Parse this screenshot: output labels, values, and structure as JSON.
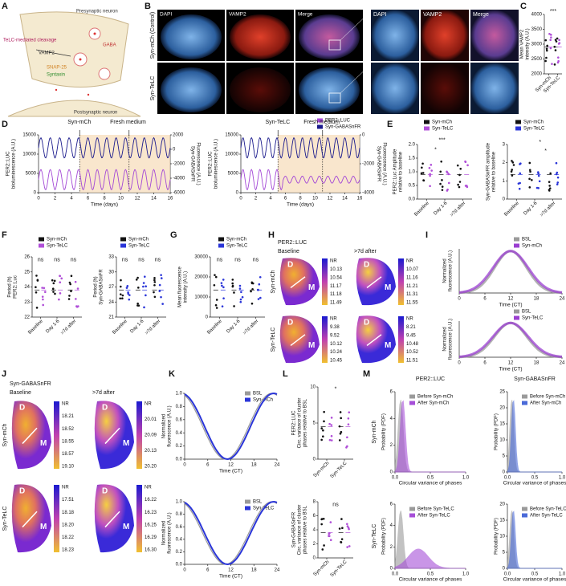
{
  "panels": {
    "A": {
      "label": "A",
      "texts": [
        "Presynaptic neuron",
        "TeLC-mediated cleavage",
        "VAMP2",
        "SNAP-25",
        "Syntaxin",
        "GABA",
        "Postsynaptic neuron"
      ]
    },
    "B": {
      "label": "B",
      "columns": [
        "DAPI",
        "VAMP2",
        "Merge"
      ],
      "zoom_columns": [
        "DAPI",
        "VAMP2",
        "Merge"
      ],
      "rows": [
        "Syn-mCh (Control)",
        "Syn-TeLC"
      ]
    },
    "C": {
      "label": "C",
      "plot": {
        "ylabel": [
          "Mean VAMP2",
          "intensity (A.U.)"
        ],
        "yticks": [
          "2000",
          "2500",
          "3000",
          "3500",
          "4000"
        ],
        "xticks": [
          "Syn-mCh",
          "Syn-TeLC"
        ],
        "notes": [
          "***"
        ]
      }
    },
    "D": {
      "label": "D",
      "plots": [
        {
          "ylabel": [
            "PER2::LUC",
            "bioluminescence (A.U.)"
          ],
          "yticks": [
            "0",
            "5000",
            "10000",
            "15000"
          ],
          "y2label": [
            "Syn-GABASnFR",
            "Fluorescence (A.U.)"
          ],
          "y2ticks": [
            "-6000",
            "-4000",
            "-2000",
            "0",
            "2000"
          ],
          "xticks": [
            "0",
            "2",
            "4",
            "6",
            "8",
            "10",
            "12",
            "14",
            "16"
          ],
          "xlabel": "Time (days)",
          "notes": [
            "Syn-mCh",
            "Fresh medium"
          ]
        },
        {
          "ylabel": [
            "PER2::LUC",
            "bioluminescence (A.U.)"
          ],
          "yticks": [
            "0",
            "5000",
            "10000",
            "15000"
          ],
          "y2label": [
            "Syn-GABASnFR",
            "Fluorescence (A.U.)"
          ],
          "y2ticks": [
            "-4000",
            "-2000",
            "0"
          ],
          "xticks": [
            "0",
            "2",
            "4",
            "6",
            "8",
            "10",
            "12",
            "14",
            "16"
          ],
          "xlabel": "Time (days)",
          "notes": [
            "Syn-TeLC",
            "Fresh medium"
          ],
          "legend": [
            {
              "name": "PER2::LUC",
              "color": "#a347d6"
            },
            {
              "name": "Syn-GABASnFR",
              "color": "#1a1a8c"
            }
          ]
        }
      ]
    },
    "E": {
      "label": "E",
      "plots": [
        {
          "ylabel": [
            "PER2::Luc Amplitude",
            "relative to baseline"
          ],
          "yticks": [
            "0.0",
            "0.5",
            "1.0",
            "1.5",
            "2.0"
          ],
          "xticks": [
            "Baseline",
            "Day 1-6",
            ">7d after"
          ],
          "notes": [
            "*",
            "***"
          ],
          "legend": [
            {
              "name": "Syn-mCh",
              "color": "#111111"
            },
            {
              "name": "Syn-TeLC",
              "color": "#b04fd8"
            }
          ]
        },
        {
          "ylabel": [
            "Syn-GABASnFR amplitude",
            "relative to baseline"
          ],
          "yticks": [
            "0",
            "1",
            "2",
            "3"
          ],
          "xticks": [
            "Baseline",
            "Day 1-6",
            ">7d after"
          ],
          "notes": [
            "*",
            "*"
          ],
          "legend": [
            {
              "name": "Syn-mCh",
              "color": "#111111"
            },
            {
              "name": "Syn-TeLC",
              "color": "#2a35d8"
            }
          ]
        }
      ]
    },
    "F": {
      "label": "F",
      "plots": [
        {
          "ylabel": [
            "Period (h)",
            "PER2::Luc"
          ],
          "yticks": [
            "22",
            "23",
            "24",
            "25",
            "26"
          ],
          "xticks": [
            "Baseline",
            "Day 1-6",
            ">7d after"
          ],
          "notes": [
            "ns",
            "ns",
            "ns"
          ],
          "legend": [
            {
              "name": "Syn-mCh",
              "color": "#111111"
            },
            {
              "name": "Syn-TeLC",
              "color": "#b04fd8"
            }
          ]
        },
        {
          "ylabel": [
            "Period (h)",
            "Syn-GABASnFR"
          ],
          "yticks": [
            "21",
            "24",
            "27",
            "30",
            "33"
          ],
          "xticks": [
            "Baseline",
            "Day 1-6",
            ">7d after"
          ],
          "notes": [
            "ns",
            "ns",
            "ns"
          ],
          "legend": [
            {
              "name": "Syn-mCh",
              "color": "#111111"
            },
            {
              "name": "Syn-TeLC",
              "color": "#2a35d8"
            }
          ]
        }
      ]
    },
    "G": {
      "label": "G",
      "plot": {
        "ylabel": [
          "Mean fluorescence",
          "intensity (A.U.)"
        ],
        "yticks": [
          "0",
          "10000",
          "20000",
          "30000"
        ],
        "xticks": [
          "Baseline",
          "Day 1-6",
          ">7d after"
        ],
        "notes": [
          "ns",
          "ns",
          "ns"
        ],
        "legend": [
          {
            "name": "Syn-mCh",
            "color": "#111111"
          },
          {
            "name": "Syn-TeLC",
            "color": "#2a35d8"
          }
        ]
      }
    },
    "H": {
      "label": "H",
      "title": "PER2::LUC",
      "columns": [
        "Baseline",
        ">7d after"
      ],
      "rows": [
        "Syn-mCh",
        "Syn-TeLC"
      ],
      "regions": [
        "D",
        "M"
      ],
      "maps": [
        {
          "labels": [
            "NR",
            "10.13",
            "10.54",
            "11.17",
            "11.18",
            "11.49"
          ]
        },
        {
          "labels": [
            "NR",
            "10.07",
            "11.16",
            "11.21",
            "11.31",
            "11.55"
          ]
        },
        {
          "labels": [
            "NR",
            "9.38",
            "9.52",
            "10.12",
            "10.24",
            "10.45"
          ]
        },
        {
          "labels": [
            "NR",
            "8.21",
            "9.45",
            "10.48",
            "10.52",
            "11.51"
          ]
        }
      ]
    },
    "I": {
      "label": "I",
      "plots": [
        {
          "ylabel": [
            "Normalized",
            "fluorescence (A.U.)"
          ],
          "xticks": [
            "0",
            "6",
            "12",
            "18",
            "24"
          ],
          "xlabel": "Time (CT)",
          "legend": [
            {
              "name": "BSL",
              "color": "#9a9a9a"
            },
            {
              "name": "Syn-mCh",
              "color": "#9b3fd1"
            }
          ]
        },
        {
          "ylabel": [
            "Normalized",
            "fluorescence (A.U.)"
          ],
          "xticks": [
            "0",
            "6",
            "12",
            "18",
            "24"
          ],
          "xlabel": "Time (CT)",
          "legend": [
            {
              "name": "BSL",
              "color": "#9a9a9a"
            },
            {
              "name": "Syn-TeLC",
              "color": "#9b3fd1"
            }
          ]
        }
      ]
    },
    "J": {
      "label": "J",
      "title": "Syn-GABASnFR",
      "columns": [
        "Baseline",
        ">7d after"
      ],
      "rows": [
        "Syn-mCh",
        "Syn-TeLC"
      ],
      "regions": [
        "D",
        "M"
      ],
      "maps": [
        {
          "labels": [
            "NR",
            "18.21",
            "18.52",
            "18.55",
            "18.57",
            "19.10"
          ]
        },
        {
          "labels": [
            "NR",
            "20.01",
            "20.09",
            "20.13",
            "20.20"
          ]
        },
        {
          "labels": [
            "NR",
            "17.51",
            "18.18",
            "18.20",
            "18.22",
            "18.23"
          ]
        },
        {
          "labels": [
            "NR",
            "16.22",
            "16.23",
            "16.25",
            "16.29",
            "16.30"
          ]
        }
      ]
    },
    "K": {
      "label": "K",
      "plots": [
        {
          "ylabel": [
            "Normalized",
            "fluorescence (A.U.)"
          ],
          "yticks": [
            "0.0",
            "0.2",
            "0.4",
            "0.6",
            "0.8",
            "1.0"
          ],
          "xticks": [
            "0",
            "6",
            "12",
            "18",
            "24"
          ],
          "xlabel": "Time (CT)",
          "legend": [
            {
              "name": "BSL",
              "color": "#9a9a9a"
            },
            {
              "name": "Syn-mCh",
              "color": "#2a35d8"
            }
          ]
        },
        {
          "ylabel": [
            "Normalized",
            "fluorescence (A.U.)"
          ],
          "yticks": [
            "0.0",
            "0.2",
            "0.4",
            "0.6",
            "0.8",
            "1.0"
          ],
          "xticks": [
            "0",
            "6",
            "12",
            "18",
            "24"
          ],
          "xlabel": "Time (CT)",
          "legend": [
            {
              "name": "BSL",
              "color": "#9a9a9a"
            },
            {
              "name": "Syn-TeLC",
              "color": "#2a35d8"
            }
          ]
        }
      ]
    },
    "L": {
      "label": "L",
      "plots": [
        {
          "ylabel": [
            "PER2::LUC",
            "Circ. variance of cluster",
            "phases relative to BSL"
          ],
          "yticks": [
            "0",
            "5",
            "10"
          ],
          "xticks": [
            "Syn-mCh",
            "Syn-TeLC"
          ],
          "notes": [
            "*"
          ]
        },
        {
          "ylabel": [
            "Syn-GABASnFR",
            "Circ. variance of cluster",
            "phases relative to BSL"
          ],
          "yticks": [
            "0",
            "2",
            "4",
            "6",
            "8"
          ],
          "xticks": [
            "Syn-mCh",
            "Syn-TeLC"
          ],
          "notes": [
            "ns"
          ]
        }
      ]
    },
    "M": {
      "label": "M",
      "columns": [
        "PER2::LUC",
        "Syn-GABASnFR"
      ],
      "rows": [
        "Syn-mCh",
        "Syn-TeLC"
      ],
      "plots": [
        {
          "ylabel": "Probability (PDF)",
          "yticks": [
            "0",
            "2",
            "4",
            "6"
          ],
          "xticks": [
            "0.0",
            "0.5",
            "1.0"
          ],
          "xlabel": "Circular variance of phases",
          "legend": [
            {
              "name": "Before Syn-mCh",
              "color": "#9a9a9a"
            },
            {
              "name": "After Syn-mCh",
              "color": "#a64fd8"
            }
          ]
        },
        {
          "ylabel": "Probability (PDF)",
          "yticks": [
            "0",
            "5",
            "10",
            "15",
            "20",
            "25"
          ],
          "xticks": [
            "0.0",
            "0.5",
            "1.0"
          ],
          "xlabel": "Circular variance of phases",
          "legend": [
            {
              "name": "Before Syn-mCh",
              "color": "#9a9a9a"
            },
            {
              "name": "After Syn-mCh",
              "color": "#4a6ad8"
            }
          ]
        },
        {
          "ylabel": "Probability (PDF)",
          "yticks": [
            "0",
            "2",
            "4",
            "6"
          ],
          "xticks": [
            "0.0",
            "0.5",
            "1.0"
          ],
          "xlabel": "Circular variance of phases",
          "legend": [
            {
              "name": "Before Syn-TeLC",
              "color": "#9a9a9a"
            },
            {
              "name": "After Syn-TeLC",
              "color": "#a64fd8"
            }
          ]
        },
        {
          "ylabel": "Probability (PDF)",
          "yticks": [
            "0",
            "5",
            "10",
            "15",
            "20"
          ],
          "xticks": [
            "0.0",
            "0.5",
            "1.0"
          ],
          "xlabel": "Circular variance of phases",
          "legend": [
            {
              "name": "Before Syn-TeLC",
              "color": "#9a9a9a"
            },
            {
              "name": "After Syn-TeLC",
              "color": "#4a6ad8"
            }
          ]
        }
      ]
    }
  }
}
